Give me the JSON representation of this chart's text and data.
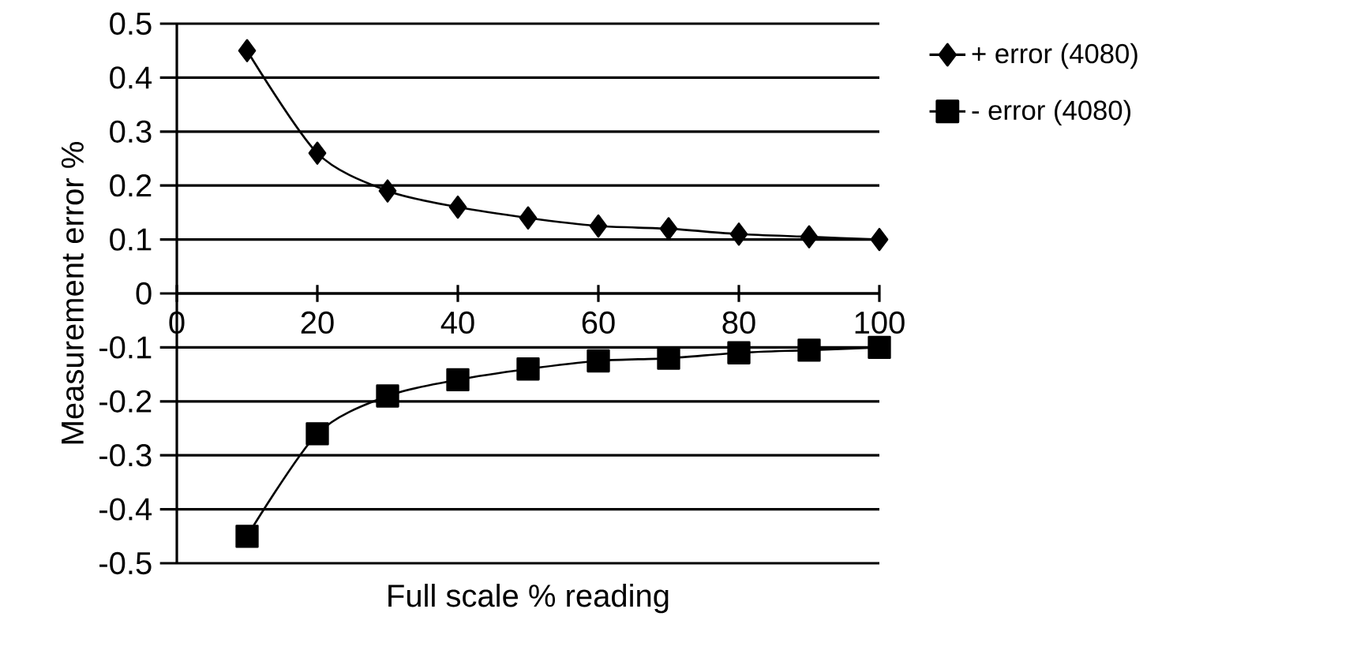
{
  "chart_data": {
    "type": "line",
    "xlabel": "Full scale % reading",
    "ylabel": "Measurement error %",
    "x": [
      10,
      20,
      30,
      40,
      50,
      60,
      70,
      80,
      90,
      100
    ],
    "series": [
      {
        "name": "+ error (4080)",
        "color": "#000000",
        "marker": "diamond",
        "values": [
          0.45,
          0.26,
          0.19,
          0.16,
          0.14,
          0.125,
          0.12,
          0.11,
          0.105,
          0.1
        ]
      },
      {
        "name": "- error (4080)",
        "color": "#000000",
        "marker": "square",
        "values": [
          -0.45,
          -0.26,
          -0.19,
          -0.16,
          -0.14,
          -0.125,
          -0.12,
          -0.11,
          -0.105,
          -0.1
        ]
      }
    ],
    "xlim": [
      0,
      100
    ],
    "xticks": [
      0,
      20,
      40,
      60,
      80,
      100
    ],
    "ylim": [
      -0.5,
      0.5
    ],
    "yticks": [
      0.5,
      0.4,
      0.3,
      0.2,
      0.1,
      0,
      -0.1,
      -0.2,
      -0.3,
      -0.4,
      -0.5
    ],
    "grid": "y",
    "legend": "right",
    "line_style": "solid"
  }
}
